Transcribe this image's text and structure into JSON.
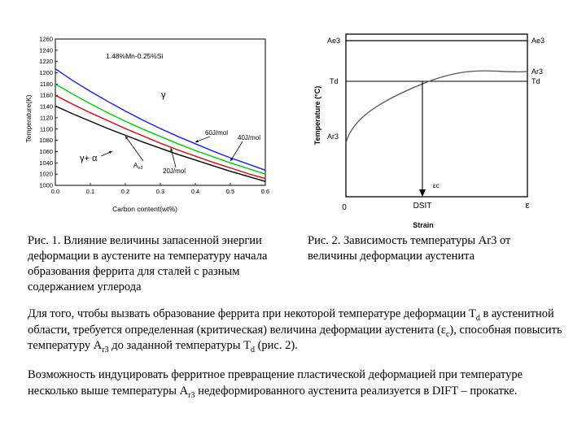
{
  "figure1": {
    "chart_data": {
      "type": "line",
      "annotation_composition": "1.48%Mn-0.25%Si",
      "xlabel": "Carbon content(wt%)",
      "ylabel": "Temperature(K)",
      "xlim": [
        0.0,
        0.6
      ],
      "ylim": [
        1000,
        1260
      ],
      "x_ticks": [
        "0.0",
        "0.1",
        "0.2",
        "0.3",
        "0.4",
        "0.5",
        "0.6"
      ],
      "y_ticks": [
        "1000",
        "1020",
        "1040",
        "1060",
        "1080",
        "1100",
        "1120",
        "1140",
        "1160",
        "1180",
        "1200",
        "1220",
        "1240",
        "1260"
      ],
      "region_gamma": "γ",
      "region_gamma_alpha": "γ+ α",
      "series": [
        {
          "name": "60J/mol",
          "color": "#1a1aff",
          "x": [
            0.0,
            0.05,
            0.1,
            0.15,
            0.2,
            0.25,
            0.3,
            0.35,
            0.4,
            0.45,
            0.5,
            0.55,
            0.6
          ],
          "y": [
            1207,
            1186,
            1167,
            1149,
            1132,
            1116,
            1101,
            1087,
            1074,
            1061,
            1049,
            1038,
            1027
          ]
        },
        {
          "name": "40J/mol",
          "color": "#00cc00",
          "x": [
            0.0,
            0.05,
            0.1,
            0.15,
            0.2,
            0.25,
            0.3,
            0.35,
            0.4,
            0.45,
            0.5,
            0.55,
            0.6
          ],
          "y": [
            1180,
            1162,
            1145,
            1129,
            1114,
            1100,
            1087,
            1074,
            1062,
            1051,
            1040,
            1030,
            1020
          ]
        },
        {
          "name": "20J/mol",
          "color": "#e00000",
          "x": [
            0.0,
            0.05,
            0.1,
            0.15,
            0.2,
            0.25,
            0.3,
            0.35,
            0.4,
            0.45,
            0.5,
            0.55,
            0.6
          ],
          "y": [
            1160,
            1144,
            1129,
            1115,
            1101,
            1088,
            1075,
            1063,
            1052,
            1041,
            1031,
            1021,
            1012
          ]
        },
        {
          "name": "Ae3",
          "color": "#000000",
          "x": [
            0.0,
            0.05,
            0.1,
            0.15,
            0.2,
            0.25,
            0.3,
            0.35,
            0.4,
            0.45,
            0.5,
            0.55,
            0.6
          ],
          "y": [
            1141,
            1127,
            1114,
            1101,
            1089,
            1077,
            1066,
            1055,
            1045,
            1035,
            1025,
            1016,
            1007
          ]
        }
      ]
    }
  },
  "figure2": {
    "chart_data": {
      "type": "line",
      "ylabel": "Temperature (°C)",
      "xlabel": "Strain",
      "origin_label": "0",
      "x_axis_end_label": "ε",
      "dsit_label": "DSIT",
      "critical_strain_label": "εc",
      "left_labels": [
        "Ae3",
        "Td",
        "Ar3"
      ],
      "right_labels": [
        "Ae3",
        "Ar3",
        "Td"
      ]
    }
  },
  "captions": {
    "fig1": "Рис. 1. Влияние величины запасенной энергии деформации в аустените на температуру начала образования феррита для сталей с разным содержанием углерода",
    "fig2": "Рис. 2. Зависимость температуры Ar3 от величины деформации аустенита"
  },
  "paragraph1": {
    "part1": "Для того, чтобы вызвать образование феррита при некоторой температуре деформации T",
    "sub1": "d",
    "part2": " в аустенитной области, требуется определенная (критическая) величина деформации аустенита (ε",
    "sub2": "c",
    "part3": "), способная повысить температуру A",
    "sub3": "r3",
    "part4": " до заданной температуры T",
    "sub4": "d",
    "part5": " (рис. 2)."
  },
  "paragraph2": {
    "part1": "Возможность индуцировать ферритное превращение пластической деформацией при температуре несколько выше  температуры A",
    "sub1": "r3",
    "part2": " недеформированного аустенита реализуется в DIFT – прокатке."
  }
}
